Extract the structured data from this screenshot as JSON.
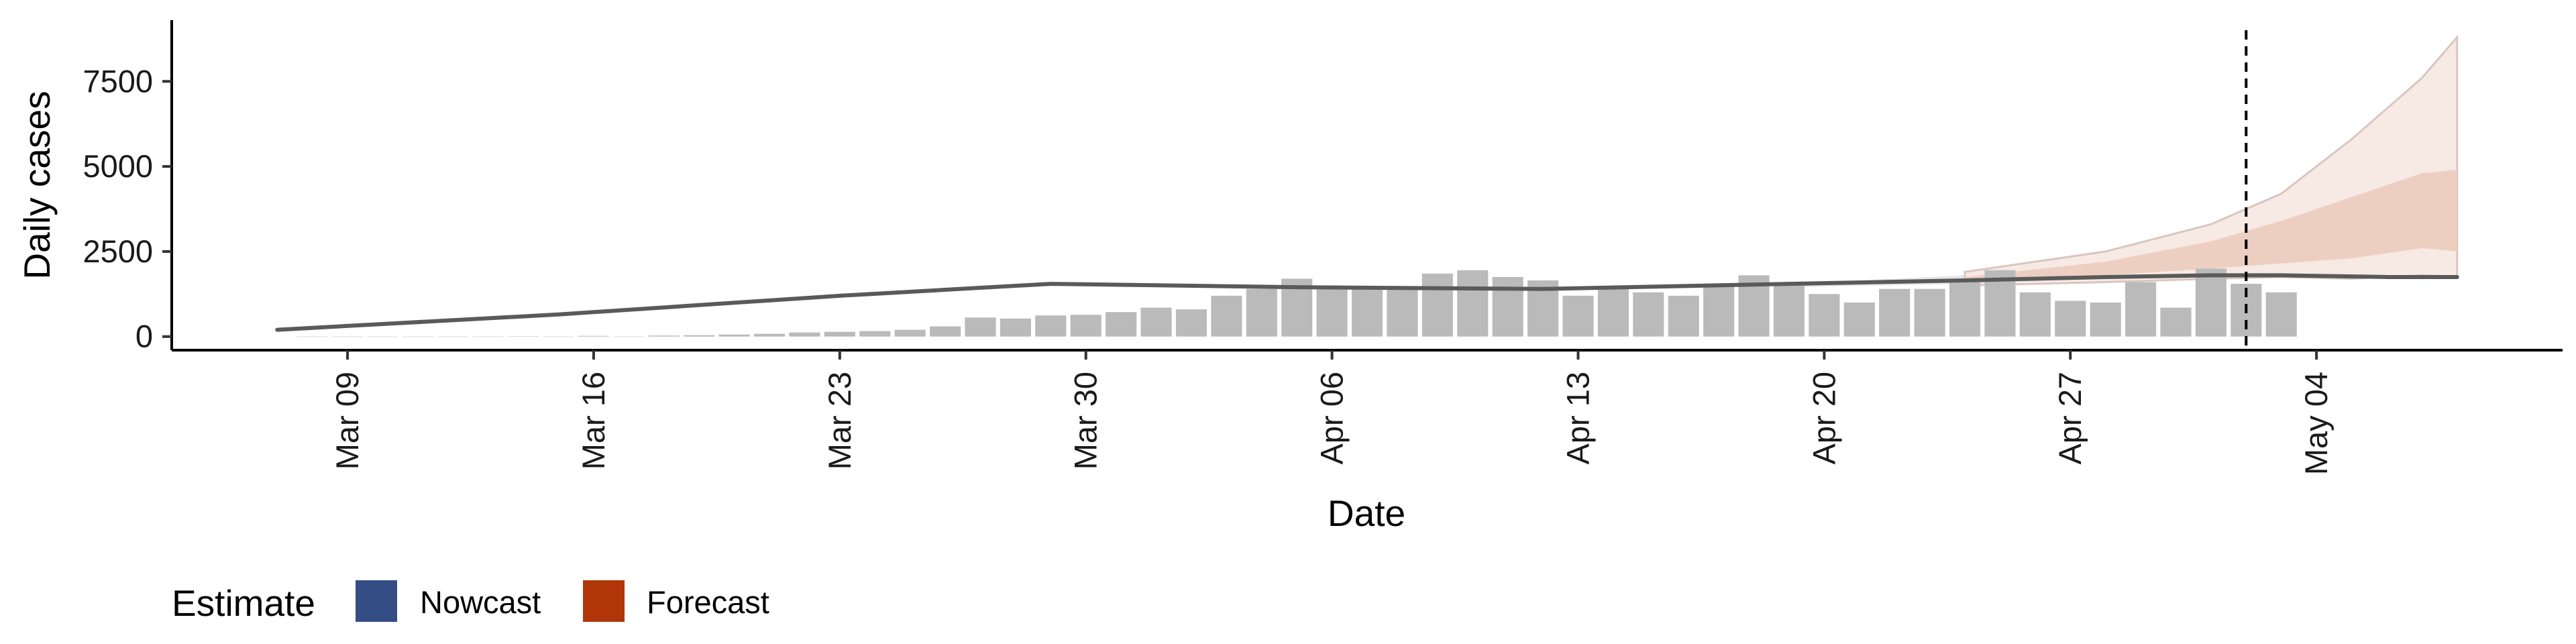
{
  "chart_data": {
    "type": "bar",
    "xlabel": "Date",
    "ylabel": "Daily cases",
    "x_tick_labels": [
      "Mar 09",
      "Mar 16",
      "Mar 23",
      "Mar 30",
      "Apr 06",
      "Apr 13",
      "Apr 20",
      "Apr 27",
      "May 04"
    ],
    "y_tick_labels": [
      "0",
      "2500",
      "5000",
      "7500"
    ],
    "y_ticks": [
      0,
      2500,
      5000,
      7500
    ],
    "ylim": [
      -400,
      9300
    ],
    "x_start": "2020-03-04",
    "x_end": "2020-05-11",
    "bar_start_date": "2020-03-08",
    "reported_cases": [
      0,
      0,
      0,
      0,
      0,
      0,
      10,
      0,
      20,
      0,
      30,
      40,
      60,
      80,
      120,
      140,
      160,
      200,
      300,
      560,
      530,
      620,
      640,
      720,
      850,
      800,
      1200,
      1400,
      1700,
      1400,
      1450,
      1420,
      1850,
      1950,
      1750,
      1650,
      1200,
      1450,
      1300,
      1200,
      1500,
      1800,
      1600,
      1250,
      1000,
      1400,
      1400,
      1600,
      1950,
      1300,
      1050,
      1000,
      1600,
      850,
      2000,
      1550,
      1300
    ],
    "estimate_dates": [
      "2020-03-07",
      "2020-03-15",
      "2020-03-23",
      "2020-03-29",
      "2020-04-05",
      "2020-04-12",
      "2020-04-19",
      "2020-04-24",
      "2020-04-28",
      "2020-05-01",
      "2020-05-03",
      "2020-05-06",
      "2020-05-08"
    ],
    "estimate_median": [
      200,
      650,
      1200,
      1550,
      1450,
      1400,
      1550,
      1650,
      1750,
      1800,
      1800,
      1750,
      1750
    ],
    "nowcast_lower90": [
      null,
      null,
      null,
      null,
      null,
      null,
      1450,
      1550,
      null,
      null,
      null,
      null,
      null
    ],
    "nowcast_upper90": [
      null,
      null,
      null,
      null,
      null,
      null,
      1550,
      1800,
      null,
      null,
      null,
      null,
      null
    ],
    "forecast_dates": [
      "2020-04-24",
      "2020-04-28",
      "2020-05-01",
      "2020-05-03",
      "2020-05-05",
      "2020-05-07",
      "2020-05-08"
    ],
    "forecast_lower50": [
      1550,
      1800,
      2000,
      2150,
      2300,
      2600,
      2500
    ],
    "forecast_upper50": [
      1750,
      2200,
      2800,
      3400,
      4100,
      4800,
      4900
    ],
    "forecast_lower90": [
      1500,
      1600,
      1700,
      1750,
      1700,
      1800,
      1750
    ],
    "forecast_upper90": [
      1900,
      2500,
      3300,
      4200,
      5800,
      7600,
      8800
    ],
    "forecast_cutoff_date": "2020-05-02",
    "legend": {
      "title": "Estimate",
      "placement": "bottom-left",
      "items": [
        {
          "label": "Nowcast",
          "color": "#344d85"
        },
        {
          "label": "Forecast",
          "color": "#b0360a"
        }
      ]
    },
    "colors": {
      "bars": "#bababa",
      "median_line": "#5a5a5a",
      "forecast_inner": "#edcfc1",
      "forecast_outer": "#f7e9e3",
      "forecast_outer_edge": "#d9c6c0",
      "nowcast_band": "#e6e6e6",
      "cutoff_line": "#000000"
    },
    "grid": false
  }
}
